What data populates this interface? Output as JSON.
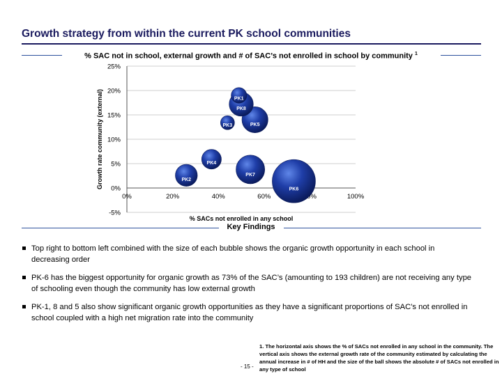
{
  "title": "Growth strategy from within the current PK school communities",
  "subtitle": "% SAC not in school, external growth and # of SAC’s not enrolled in school by community",
  "subtitle_sup": "1",
  "key_findings_label": "Key Findings",
  "findings": [
    "Top right to bottom left combined with the size of each bubble shows the organic growth opportunity in each school in decreasing order",
    "PK-6 has the biggest opportunity for organic growth as 73% of the SAC’s (amounting to 193 children) are not receiving any type of schooling even though the community has low external growth",
    "PK-1, 8 and 5 also show significant organic growth opportunities as they have a significant proportions of SAC’s not enrolled in school coupled with a high net migration rate into the community"
  ],
  "footnote": "1. The horizontal axis shows the % of SACs not enrolled in any school in the community. The vertical axis shows the external growth rate of the community estimated by calculating the annual increase in  # of HH and the size of the ball shows the absolute # of SACs not enrolled in  any type of school",
  "page_number": "- 15 -",
  "colors": {
    "accent": "#1a1a5e",
    "rule": "#2a4f9c",
    "bubble": "#1f3ea8"
  },
  "chart_data": {
    "type": "scatter",
    "bubble": true,
    "xlabel": "% SACs not enrolled in any school",
    "ylabel": "Growth rate community (external)",
    "xlim": [
      0,
      100
    ],
    "ylim": [
      -5,
      25
    ],
    "x_ticks": [
      "0%",
      "20%",
      "40%",
      "60%",
      "80%",
      "100%"
    ],
    "y_ticks": [
      "-5%",
      "0%",
      "5%",
      "10%",
      "15%",
      "20%",
      "25%"
    ],
    "x_tick_values": [
      0,
      20,
      40,
      60,
      80,
      100
    ],
    "y_tick_values": [
      -5,
      0,
      5,
      10,
      15,
      20,
      25
    ],
    "grid": "horizontal",
    "points": [
      {
        "label": "PK1",
        "x": 49,
        "y": 19,
        "size": 25
      },
      {
        "label": "PK8",
        "x": 50,
        "y": 17.2,
        "size": 60
      },
      {
        "label": "PK3",
        "x": 44,
        "y": 13.4,
        "size": 20
      },
      {
        "label": "PK5",
        "x": 56,
        "y": 14,
        "size": 70
      },
      {
        "label": "PK4",
        "x": 37,
        "y": 5.9,
        "size": 40
      },
      {
        "label": "PK2",
        "x": 26,
        "y": 2.6,
        "size": 50
      },
      {
        "label": "PK7",
        "x": 54,
        "y": 3.8,
        "size": 85
      },
      {
        "label": "PK6",
        "x": 73,
        "y": 1.4,
        "size": 193
      }
    ]
  }
}
